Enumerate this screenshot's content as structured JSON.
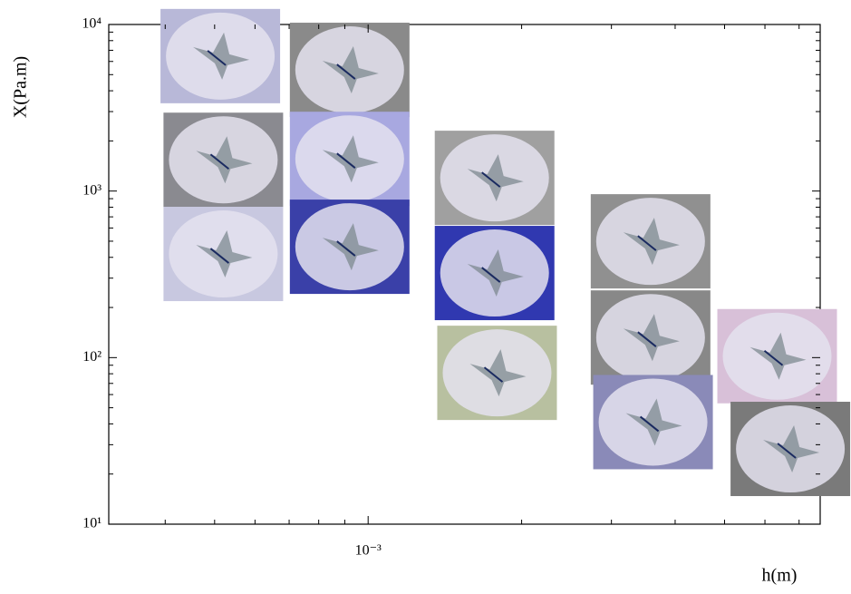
{
  "chart_data": {
    "type": "scatter",
    "x_label": "h(m)",
    "y_label": "X(Pa.m)",
    "x_scale": "log",
    "y_scale": "log",
    "xlim": [
      0.00031,
      0.0077
    ],
    "ylim": [
      10,
      10000
    ],
    "xticks": [
      {
        "value": 0.001,
        "label": "10⁻³"
      }
    ],
    "yticks": [
      {
        "value": 10,
        "label": "10¹"
      },
      {
        "value": 100,
        "label": "10²"
      },
      {
        "value": 1000,
        "label": "10³"
      },
      {
        "value": 10000,
        "label": "10⁴"
      }
    ],
    "x": [
      0.000513,
      0.00092,
      0.00052,
      0.00092,
      0.00052,
      0.00092,
      0.00177,
      0.00177,
      0.00179,
      0.00358,
      0.00358,
      0.00362,
      0.00634,
      0.00673
    ],
    "values": [
      6460,
      5340,
      1540,
      1560,
      419,
      463,
      1200,
      322,
      81,
      499,
      132,
      41,
      102,
      28.3
    ],
    "colors": [
      "#b8b8d8",
      "#8a8a8a",
      "#8a8a90",
      "#a8a8e0",
      "#c8c8e0",
      "#3a40a8",
      "#a0a0a0",
      "#3038b0",
      "#b8c0a0",
      "#909090",
      "#888888",
      "#8a8ab8",
      "#d8c0d8",
      "#7a7a7a"
    ]
  }
}
